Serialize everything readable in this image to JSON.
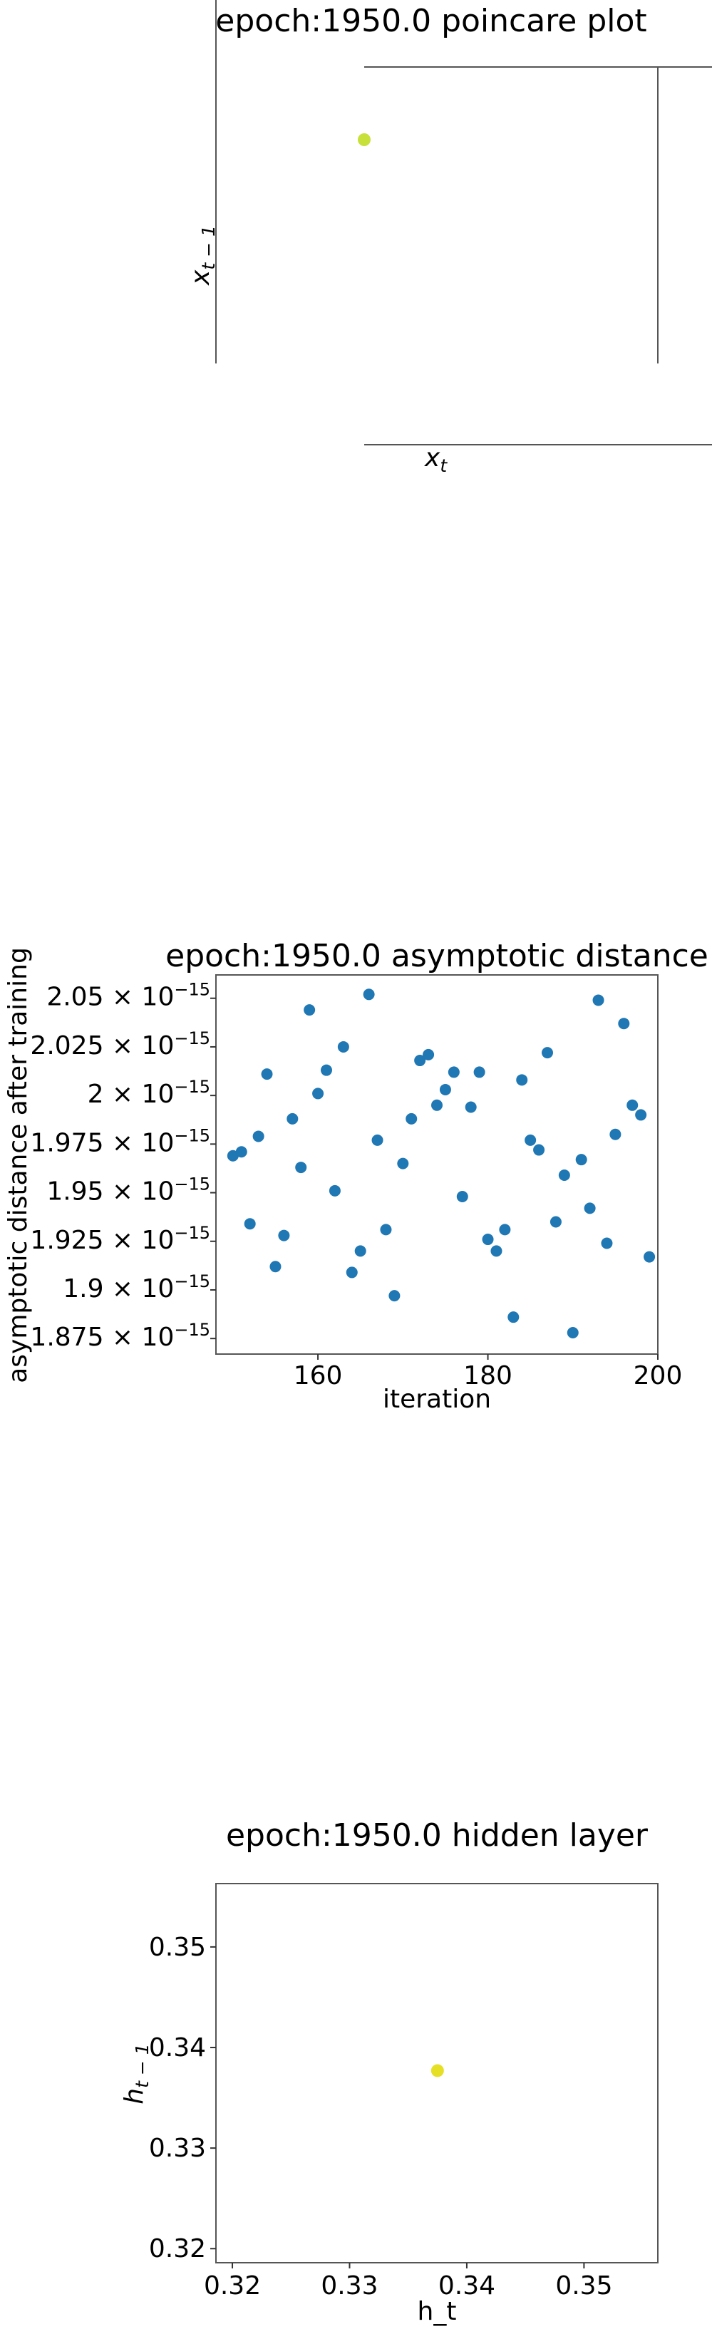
{
  "chart_data": [
    {
      "type": "scatter",
      "title": "epoch:1950.0 poincare plot",
      "xlabel": "x",
      "xlabel_sub": "t",
      "ylabel": "x",
      "ylabel_sub": "t − 1",
      "point": {
        "color": "#c8e03a"
      }
    },
    {
      "type": "scatter",
      "title": "epoch:1950.0 asymptotic distance",
      "xlabel": "iteration",
      "ylabel": "asymptotic distance after training",
      "xlim": [
        148,
        200
      ],
      "ylim": [
        1.867e-15,
        2.062e-15
      ],
      "xticks": [
        {
          "v": 160,
          "label": "160"
        },
        {
          "v": 180,
          "label": "180"
        },
        {
          "v": 200,
          "label": "200"
        }
      ],
      "yticks": [
        {
          "v": 1.875e-15,
          "mant": "1.875"
        },
        {
          "v": 1.9e-15,
          "mant": "1.9"
        },
        {
          "v": 1.925e-15,
          "mant": "1.925"
        },
        {
          "v": 1.95e-15,
          "mant": "1.95"
        },
        {
          "v": 1.975e-15,
          "mant": "1.975"
        },
        {
          "v": 2e-15,
          "mant": "2"
        },
        {
          "v": 2.025e-15,
          "mant": "2.025"
        },
        {
          "v": 2.05e-15,
          "mant": "2.05"
        }
      ],
      "ytick_times": "× 10",
      "ytick_exp": "−15",
      "color": "#1f77b4",
      "x": [
        150,
        151,
        152,
        153,
        154,
        155,
        156,
        157,
        158,
        159,
        160,
        161,
        162,
        163,
        164,
        165,
        166,
        167,
        168,
        169,
        170,
        171,
        172,
        173,
        174,
        175,
        176,
        177,
        178,
        179,
        180,
        181,
        182,
        183,
        184,
        185,
        186,
        187,
        188,
        189,
        190,
        191,
        192,
        193,
        194,
        195,
        196,
        197,
        198,
        199
      ],
      "y": [
        1.969e-15,
        1.971e-15,
        1.934e-15,
        1.979e-15,
        2.011e-15,
        1.912e-15,
        1.928e-15,
        1.988e-15,
        1.963e-15,
        2.044e-15,
        2.001e-15,
        2.013e-15,
        1.951e-15,
        2.025e-15,
        1.909e-15,
        1.92e-15,
        2.052e-15,
        1.977e-15,
        1.931e-15,
        1.897e-15,
        1.965e-15,
        1.988e-15,
        2.018e-15,
        2.021e-15,
        1.995e-15,
        2.003e-15,
        2.012e-15,
        1.948e-15,
        1.994e-15,
        2.012e-15,
        1.926e-15,
        1.92e-15,
        1.931e-15,
        1.886e-15,
        2.008e-15,
        1.977e-15,
        1.972e-15,
        2.022e-15,
        1.935e-15,
        1.959e-15,
        1.878e-15,
        1.967e-15,
        1.942e-15,
        2.049e-15,
        1.924e-15,
        1.98e-15,
        2.037e-15,
        1.995e-15,
        1.99e-15,
        1.917e-15
      ]
    },
    {
      "type": "scatter",
      "title": "epoch:1950.0 hidden layer",
      "xlabel": "h_t",
      "ylabel": "h",
      "ylabel_sub": "t − 1",
      "xlim": [
        0.3186,
        0.3563
      ],
      "ylim": [
        0.3186,
        0.3563
      ],
      "xticks": [
        {
          "v": 0.32,
          "label": "0.32"
        },
        {
          "v": 0.33,
          "label": "0.33"
        },
        {
          "v": 0.34,
          "label": "0.34"
        },
        {
          "v": 0.35,
          "label": "0.35"
        }
      ],
      "yticks": [
        {
          "v": 0.32,
          "label": "0.32"
        },
        {
          "v": 0.33,
          "label": "0.33"
        },
        {
          "v": 0.34,
          "label": "0.34"
        },
        {
          "v": 0.35,
          "label": "0.35"
        }
      ],
      "points": [
        {
          "x": 0.3375,
          "y": 0.3377
        }
      ],
      "color": "#e5e026"
    }
  ]
}
